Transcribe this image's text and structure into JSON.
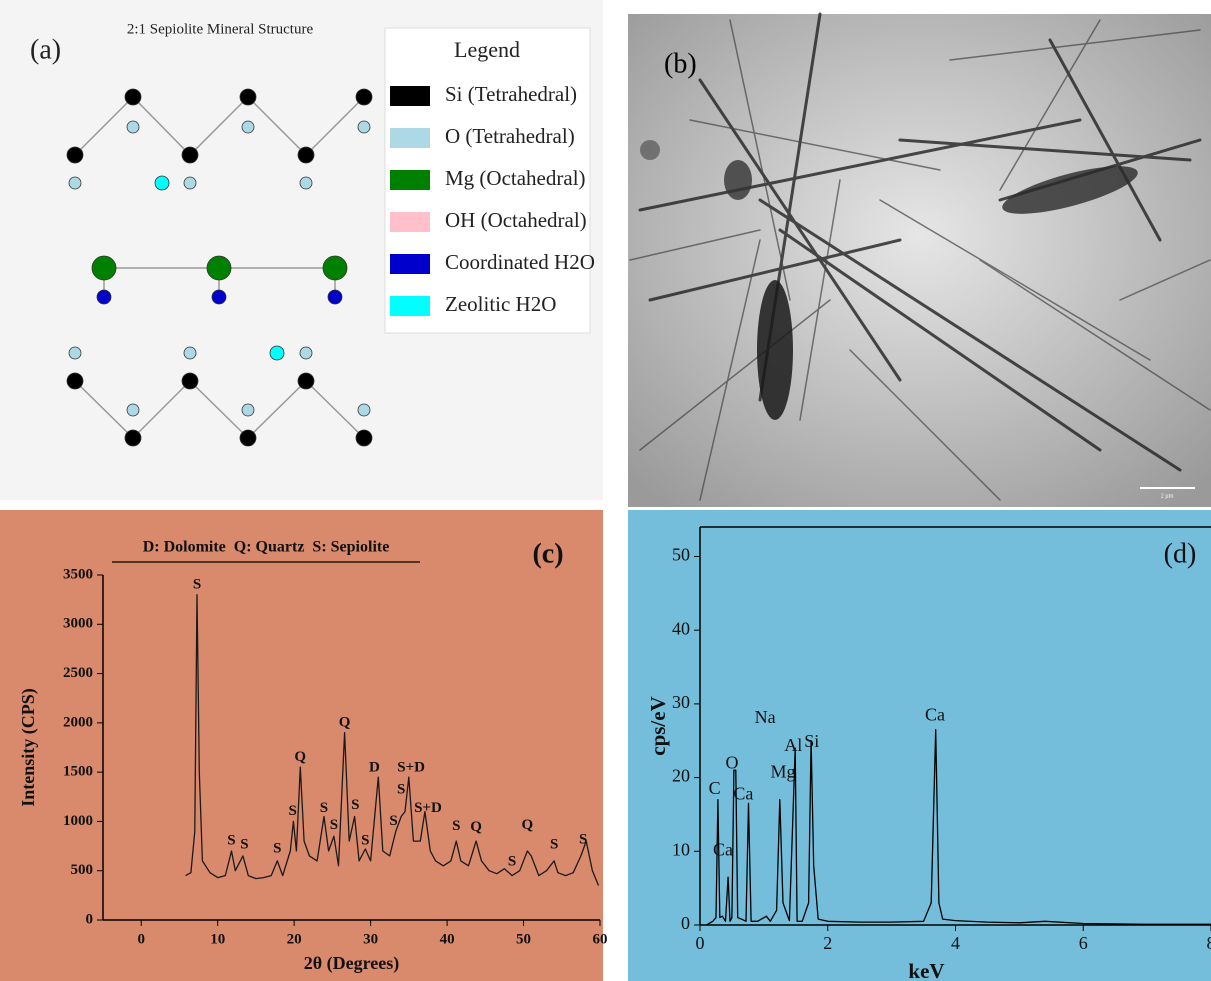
{
  "diagram": {
    "title": "2:1 Sepiolite Mineral Structure",
    "panel_label": "(a)",
    "legend": {
      "title": "Legend",
      "items": [
        {
          "label": "Si (Tetrahedral)",
          "color": "#000000"
        },
        {
          "label": "O (Tetrahedral)",
          "color": "#add8e6"
        },
        {
          "label": "Mg (Octahedral)",
          "color": "#008000"
        },
        {
          "label": "OH (Octahedral)",
          "color": "#ffc0cb"
        },
        {
          "label": "Coordinated H2O",
          "color": "#0000cd"
        },
        {
          "label": "Zeolitic H2O",
          "color": "#00ffff"
        }
      ]
    }
  },
  "image": {
    "panel_label": "(b)",
    "scale_label": "2 µm"
  },
  "chart_data": [
    {
      "type": "line",
      "panel_label": "(c)",
      "title": "D: Dolomite  Q: Quartz  S: Sepiolite",
      "x_label": "2θ (Degrees)",
      "y_label": "Intensity (CPS)",
      "color": "#1a1a1a",
      "xlim": [
        -5,
        60
      ],
      "xticks": [
        0,
        10,
        20,
        30,
        40,
        50,
        60
      ],
      "ylim": [
        0,
        3500
      ],
      "yticks": [
        0,
        500,
        1000,
        1500,
        2000,
        2500,
        3000,
        3500
      ],
      "x": [
        5.8,
        6.5,
        7.0,
        7.3,
        7.6,
        8.0,
        9,
        10,
        11,
        11.8,
        12.3,
        13.3,
        14,
        15,
        16,
        17,
        17.8,
        18.5,
        19.5,
        19.9,
        20.3,
        20.8,
        21.3,
        22,
        23,
        23.9,
        24.5,
        25.2,
        25.8,
        26.6,
        27.2,
        27.9,
        28.5,
        29.3,
        30,
        31,
        31.6,
        32.5,
        33.3,
        34,
        34.5,
        35,
        35.6,
        36.5,
        37.1,
        37.8,
        38.5,
        39.5,
        40.5,
        41.2,
        41.8,
        42.8,
        43.8,
        44.5,
        45.5,
        46.5,
        47.5,
        48.5,
        49.5,
        50.5,
        51,
        52,
        53,
        54,
        54.5,
        55.5,
        56.5,
        57.5,
        58.2,
        59,
        59.8
      ],
      "values": [
        450,
        480,
        900,
        3300,
        1500,
        600,
        480,
        430,
        450,
        700,
        500,
        650,
        450,
        420,
        430,
        450,
        600,
        450,
        700,
        1000,
        700,
        1550,
        800,
        650,
        600,
        1050,
        700,
        850,
        550,
        1900,
        800,
        1050,
        600,
        720,
        600,
        1450,
        700,
        650,
        900,
        1050,
        1100,
        1450,
        800,
        800,
        1100,
        700,
        600,
        550,
        600,
        800,
        600,
        550,
        800,
        600,
        500,
        470,
        520,
        450,
        500,
        700,
        650,
        450,
        500,
        600,
        480,
        450,
        480,
        650,
        800,
        500,
        350
      ],
      "peak_labels": [
        {
          "label": "S",
          "x": 7.3,
          "y": 3400
        },
        {
          "label": "S",
          "x": 11.8,
          "y": 800
        },
        {
          "label": "S",
          "x": 13.5,
          "y": 760
        },
        {
          "label": "S",
          "x": 17.8,
          "y": 720
        },
        {
          "label": "S",
          "x": 19.8,
          "y": 1100
        },
        {
          "label": "Q",
          "x": 20.8,
          "y": 1650
        },
        {
          "label": "S",
          "x": 23.9,
          "y": 1130
        },
        {
          "label": "S",
          "x": 25.2,
          "y": 960
        },
        {
          "label": "Q",
          "x": 26.6,
          "y": 2000
        },
        {
          "label": "S",
          "x": 28.0,
          "y": 1160
        },
        {
          "label": "S",
          "x": 29.3,
          "y": 800
        },
        {
          "label": "D",
          "x": 30.5,
          "y": 1540
        },
        {
          "label": "S",
          "x": 33.0,
          "y": 1000
        },
        {
          "label": "S",
          "x": 34.0,
          "y": 1320
        },
        {
          "label": "S+D",
          "x": 35.3,
          "y": 1540
        },
        {
          "label": "S+D",
          "x": 37.5,
          "y": 1130
        },
        {
          "label": "S",
          "x": 41.2,
          "y": 950
        },
        {
          "label": "Q",
          "x": 43.8,
          "y": 940
        },
        {
          "label": "S",
          "x": 48.5,
          "y": 590
        },
        {
          "label": "Q",
          "x": 50.5,
          "y": 960
        },
        {
          "label": "S",
          "x": 54.0,
          "y": 760
        },
        {
          "label": "S",
          "x": 57.8,
          "y": 810
        }
      ]
    },
    {
      "type": "line",
      "panel_label": "(d)",
      "x_label": "keV",
      "y_label": "cps/eV",
      "color": "#000000",
      "xlim": [
        0,
        8
      ],
      "xticks": [
        0,
        2,
        4,
        6,
        8
      ],
      "ylim": [
        0,
        54
      ],
      "yticks": [
        0,
        10,
        20,
        30,
        40,
        50
      ],
      "x": [
        0.1,
        0.2,
        0.25,
        0.28,
        0.31,
        0.35,
        0.4,
        0.44,
        0.47,
        0.5,
        0.53,
        0.56,
        0.59,
        0.65,
        0.72,
        0.76,
        0.8,
        0.9,
        1.04,
        1.1,
        1.2,
        1.25,
        1.3,
        1.4,
        1.49,
        1.52,
        1.6,
        1.7,
        1.74,
        1.78,
        1.85,
        2,
        2.5,
        3,
        3.5,
        3.62,
        3.69,
        3.74,
        3.8,
        4,
        4.5,
        5,
        5.4,
        6,
        7,
        8
      ],
      "values": [
        0,
        0.5,
        1,
        17,
        1,
        1.2,
        0.5,
        6.5,
        0.5,
        1,
        21,
        21,
        1,
        0.8,
        0.5,
        16.5,
        0.5,
        0.5,
        1.2,
        0.5,
        2,
        17,
        3,
        0.6,
        24,
        0.5,
        0.5,
        3,
        25,
        8,
        0.8,
        0.5,
        0.4,
        0.4,
        0.5,
        3,
        26.5,
        3,
        0.8,
        0.6,
        0.4,
        0.3,
        0.5,
        0.2,
        0.1,
        0.1
      ],
      "peak_labels": [
        {
          "label": "C",
          "x": 0.23,
          "y": 18.3
        },
        {
          "label": "Ca",
          "x": 0.36,
          "y": 10
        },
        {
          "label": "O",
          "x": 0.5,
          "y": 21.8
        },
        {
          "label": "Ca",
          "x": 0.68,
          "y": 17.6
        },
        {
          "label": "Na",
          "x": 1.02,
          "y": 28
        },
        {
          "label": "Mg",
          "x": 1.3,
          "y": 20.6
        },
        {
          "label": "Al",
          "x": 1.46,
          "y": 24.2
        },
        {
          "label": "Si",
          "x": 1.75,
          "y": 24.7
        },
        {
          "label": "Ca",
          "x": 3.68,
          "y": 28.3
        }
      ]
    }
  ]
}
